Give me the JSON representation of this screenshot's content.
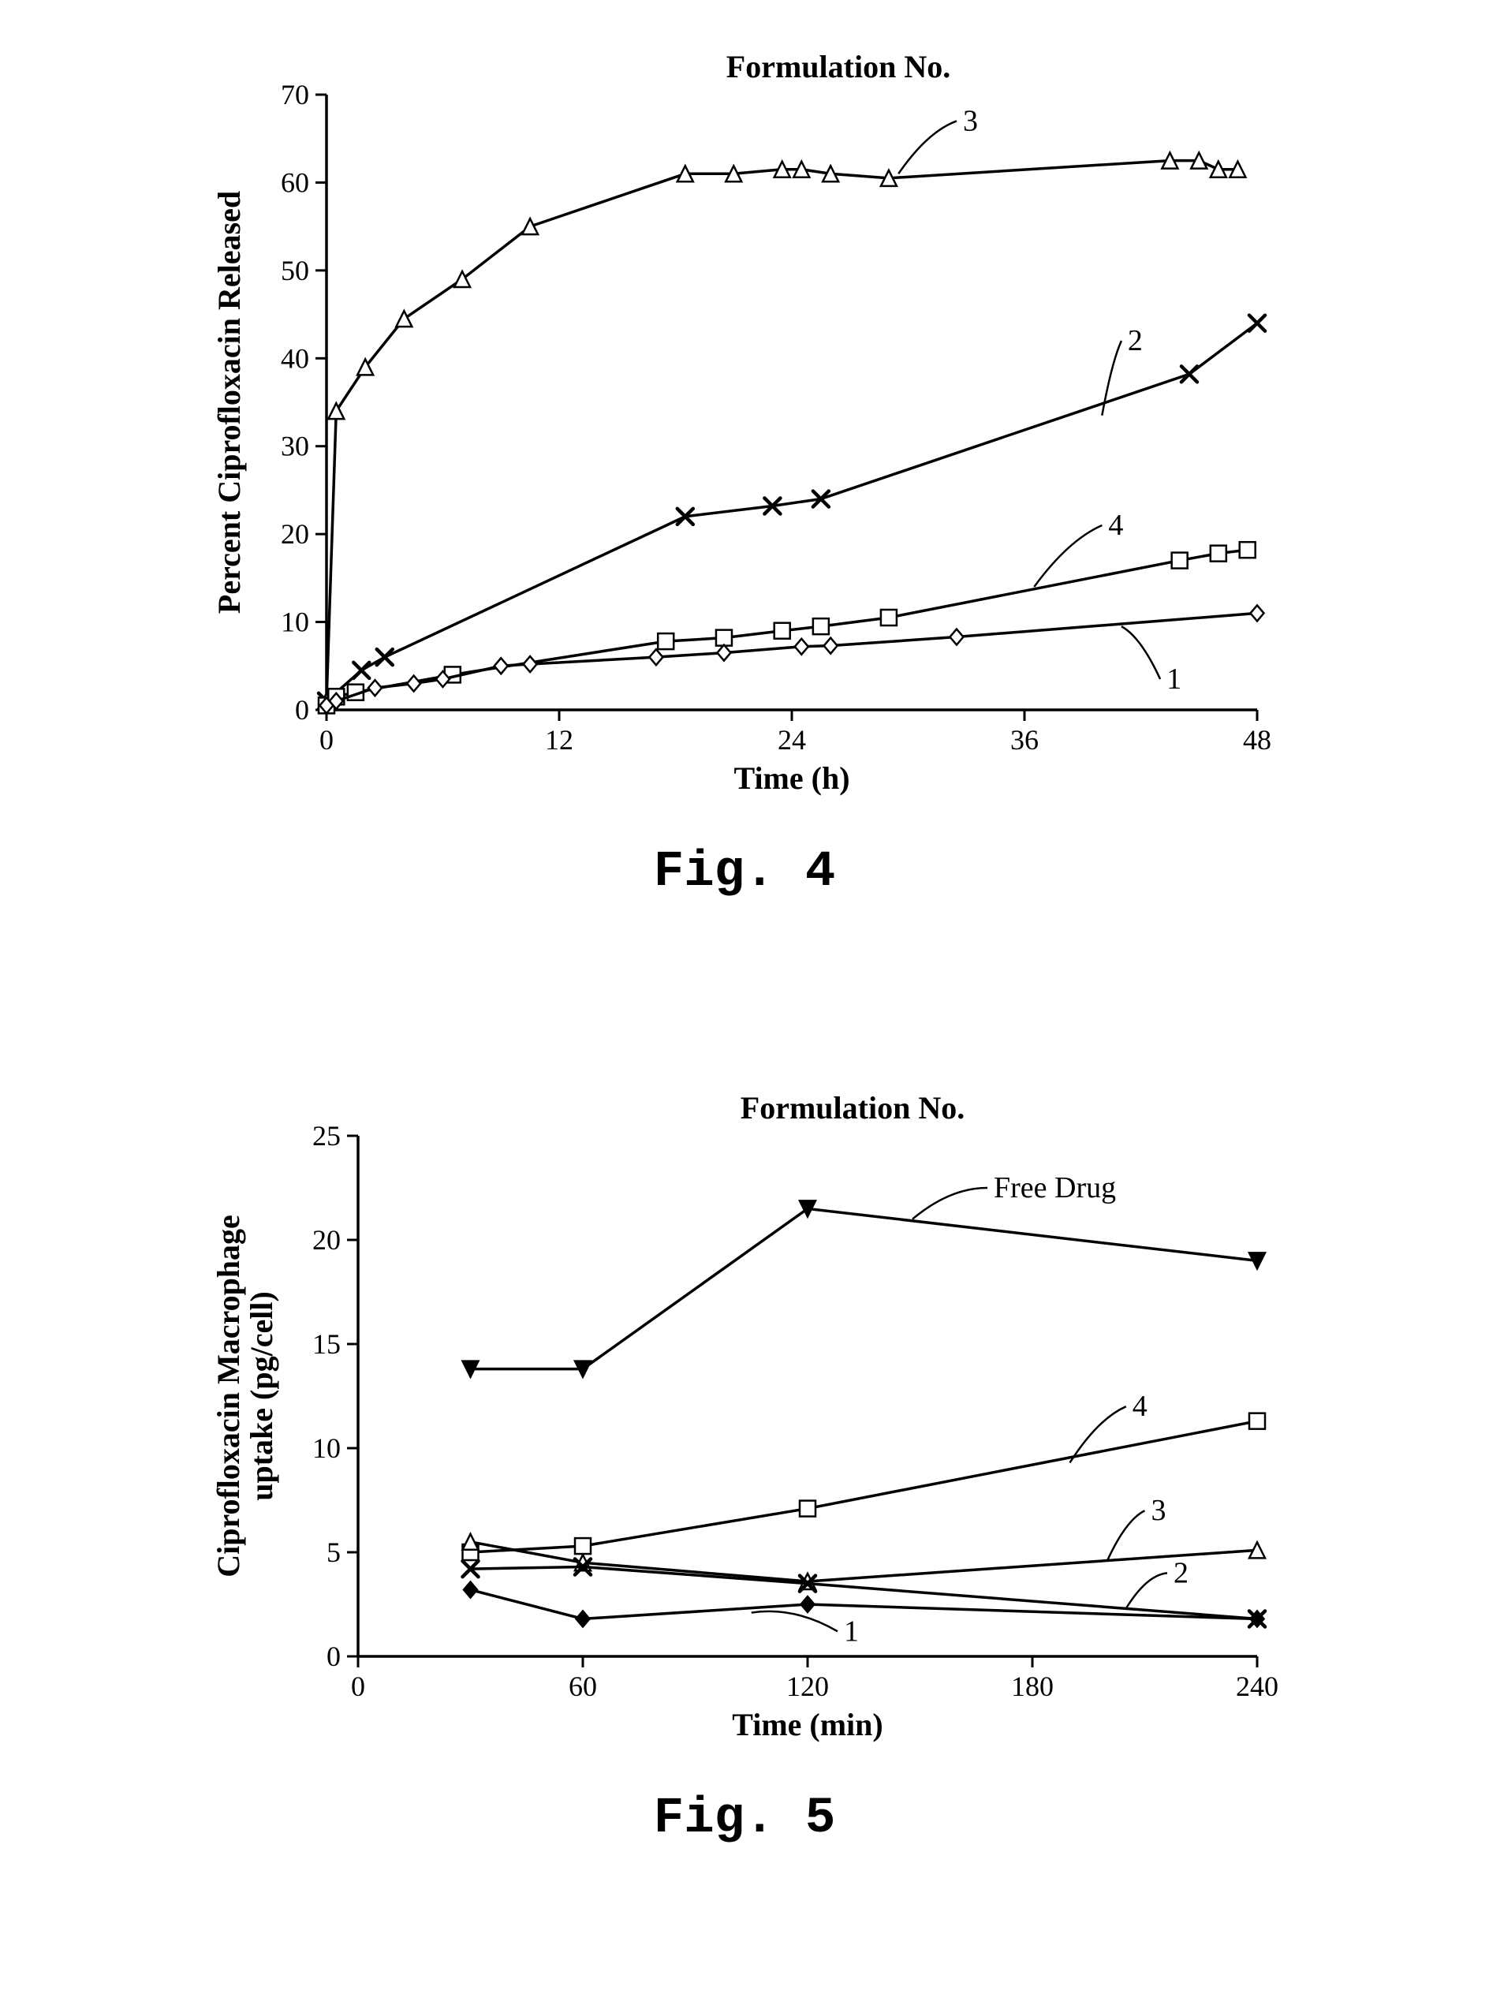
{
  "fig4": {
    "caption": "Fig. 4",
    "header": "Formulation No.",
    "xlabel": "Time (h)",
    "ylabel": "Percent Ciprofloxacin Released",
    "xlim": [
      0,
      48
    ],
    "ylim": [
      0,
      70
    ],
    "xtick_step": 12,
    "ytick_step": 10,
    "axis_color": "#000000",
    "line_color": "#000000",
    "background_color": "#ffffff",
    "label_fontsize": 40,
    "tick_fontsize": 36,
    "header_fontsize": 40,
    "line_width": 3.5,
    "marker_size": 20,
    "series": [
      {
        "label": "3",
        "marker": "triangle",
        "x": [
          0,
          0.5,
          2,
          4,
          7,
          10.5,
          18.5,
          21,
          23.5,
          24.5,
          26,
          29,
          43.5,
          45,
          46,
          47
        ],
        "y": [
          1,
          34,
          39,
          44.5,
          49,
          55,
          61,
          61,
          61.5,
          61.5,
          61,
          60.5,
          62.5,
          62.5,
          61.5,
          61.5
        ],
        "callout_index": 10
      },
      {
        "label": "2",
        "marker": "x",
        "x": [
          0,
          1.8,
          3,
          18.5,
          23,
          25.5,
          44.5,
          48
        ],
        "y": [
          1,
          4.5,
          6,
          22,
          23.2,
          24,
          38.2,
          44
        ],
        "callout_index": 6
      },
      {
        "label": "4",
        "marker": "square",
        "x": [
          0,
          0.5,
          1.5,
          6.5,
          17.5,
          20.5,
          23.5,
          25.5,
          29,
          44,
          46,
          47.5
        ],
        "y": [
          0.5,
          1.5,
          2,
          4,
          7.8,
          8.2,
          9,
          9.5,
          10.5,
          17,
          17.8,
          18.2
        ],
        "callout_index": 8
      },
      {
        "label": "1",
        "marker": "diamond",
        "x": [
          0,
          0.5,
          2.5,
          4.5,
          6,
          9,
          10.5,
          17,
          20.5,
          24.5,
          26,
          32.5,
          48
        ],
        "y": [
          0.5,
          1,
          2.5,
          3,
          3.5,
          5,
          5.2,
          6,
          6.5,
          7.2,
          7.3,
          8.3,
          11
        ],
        "callout_index": 11
      }
    ]
  },
  "fig5": {
    "caption": "Fig. 5",
    "header": "Formulation No.",
    "xlabel": "Time (min)",
    "ylabel": "Ciprofloxacin Macrophage\nuptake (pg/cell)",
    "xlim": [
      0,
      240
    ],
    "ylim": [
      0,
      25
    ],
    "xtick_step": 60,
    "ytick_step": 5,
    "axis_color": "#000000",
    "line_color": "#000000",
    "background_color": "#ffffff",
    "label_fontsize": 40,
    "tick_fontsize": 36,
    "header_fontsize": 40,
    "line_width": 3.5,
    "marker_size": 20,
    "series": [
      {
        "label": "Free Drug",
        "marker": "triangle-down-filled",
        "x": [
          30,
          60,
          120,
          240
        ],
        "y": [
          13.8,
          13.8,
          21.5,
          19
        ],
        "callout_index": 2
      },
      {
        "label": "4",
        "marker": "square",
        "x": [
          30,
          60,
          120,
          240
        ],
        "y": [
          5,
          5.3,
          7.1,
          11.3
        ],
        "callout_index": 2
      },
      {
        "label": "3",
        "marker": "triangle",
        "x": [
          30,
          60,
          120,
          240
        ],
        "y": [
          5.5,
          4.5,
          3.6,
          5.1
        ],
        "callout_index": 2
      },
      {
        "label": "2",
        "marker": "x",
        "x": [
          30,
          60,
          120,
          240
        ],
        "y": [
          4.2,
          4.3,
          3.5,
          1.8
        ],
        "callout_index": 2
      },
      {
        "label": "1",
        "marker": "diamond-filled",
        "x": [
          30,
          60,
          120,
          240
        ],
        "y": [
          3.2,
          1.8,
          2.5,
          1.8
        ],
        "callout_index": 1
      }
    ]
  }
}
